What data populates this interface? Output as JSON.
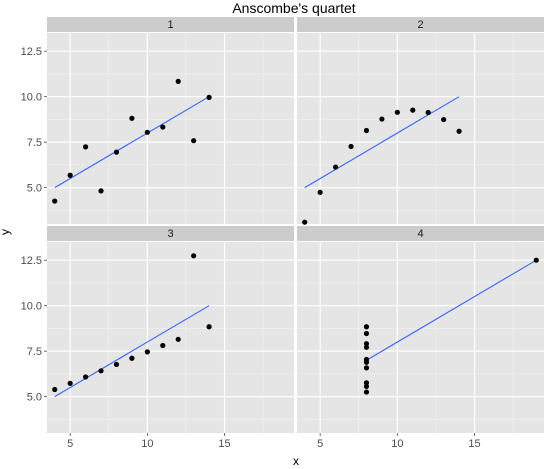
{
  "chart_data": {
    "type": "scatter",
    "title": "Anscombe's quartet",
    "xlabel": "x",
    "ylabel": "y",
    "xlim": [
      3.5,
      19.5
    ],
    "ylim": [
      3.0,
      13.5
    ],
    "x_ticks": [
      5,
      10,
      15
    ],
    "y_ticks": [
      5.0,
      7.5,
      10.0,
      12.5
    ],
    "y_tick_labels": [
      "5.0",
      "7.5",
      "10.0",
      "12.5"
    ],
    "x_tick_labels": [
      "5",
      "10",
      "15"
    ],
    "grid": true,
    "colors": {
      "panel": "#e5e5e5",
      "strip": "#cccccc",
      "grid": "#ffffff",
      "point": "#000000",
      "fit_line": "#3366ff"
    },
    "panels": [
      {
        "label": "1",
        "x": [
          10,
          8,
          13,
          9,
          11,
          14,
          6,
          4,
          12,
          7,
          5
        ],
        "y": [
          8.04,
          6.95,
          7.58,
          8.81,
          8.33,
          9.96,
          7.24,
          4.26,
          10.84,
          4.82,
          5.68
        ],
        "fit": {
          "x": [
            4,
            14
          ],
          "y": [
            5.0,
            10.0
          ]
        }
      },
      {
        "label": "2",
        "x": [
          10,
          8,
          13,
          9,
          11,
          14,
          6,
          4,
          12,
          7,
          5
        ],
        "y": [
          9.14,
          8.14,
          8.74,
          8.77,
          9.26,
          8.1,
          6.13,
          3.1,
          9.13,
          7.26,
          4.74
        ],
        "fit": {
          "x": [
            4,
            14
          ],
          "y": [
            5.0,
            10.0
          ]
        }
      },
      {
        "label": "3",
        "x": [
          10,
          8,
          13,
          9,
          11,
          14,
          6,
          4,
          12,
          7,
          5
        ],
        "y": [
          7.46,
          6.77,
          12.74,
          7.11,
          7.81,
          8.84,
          6.08,
          5.39,
          8.15,
          6.42,
          5.73
        ],
        "fit": {
          "x": [
            4,
            14
          ],
          "y": [
            5.0,
            10.0
          ]
        }
      },
      {
        "label": "4",
        "x": [
          8,
          8,
          8,
          8,
          8,
          8,
          8,
          19,
          8,
          8,
          8
        ],
        "y": [
          6.58,
          5.76,
          7.71,
          8.84,
          8.47,
          7.04,
          5.25,
          12.5,
          5.56,
          7.91,
          6.89
        ],
        "fit": {
          "x": [
            8,
            19
          ],
          "y": [
            7.0,
            12.5
          ]
        }
      }
    ]
  }
}
